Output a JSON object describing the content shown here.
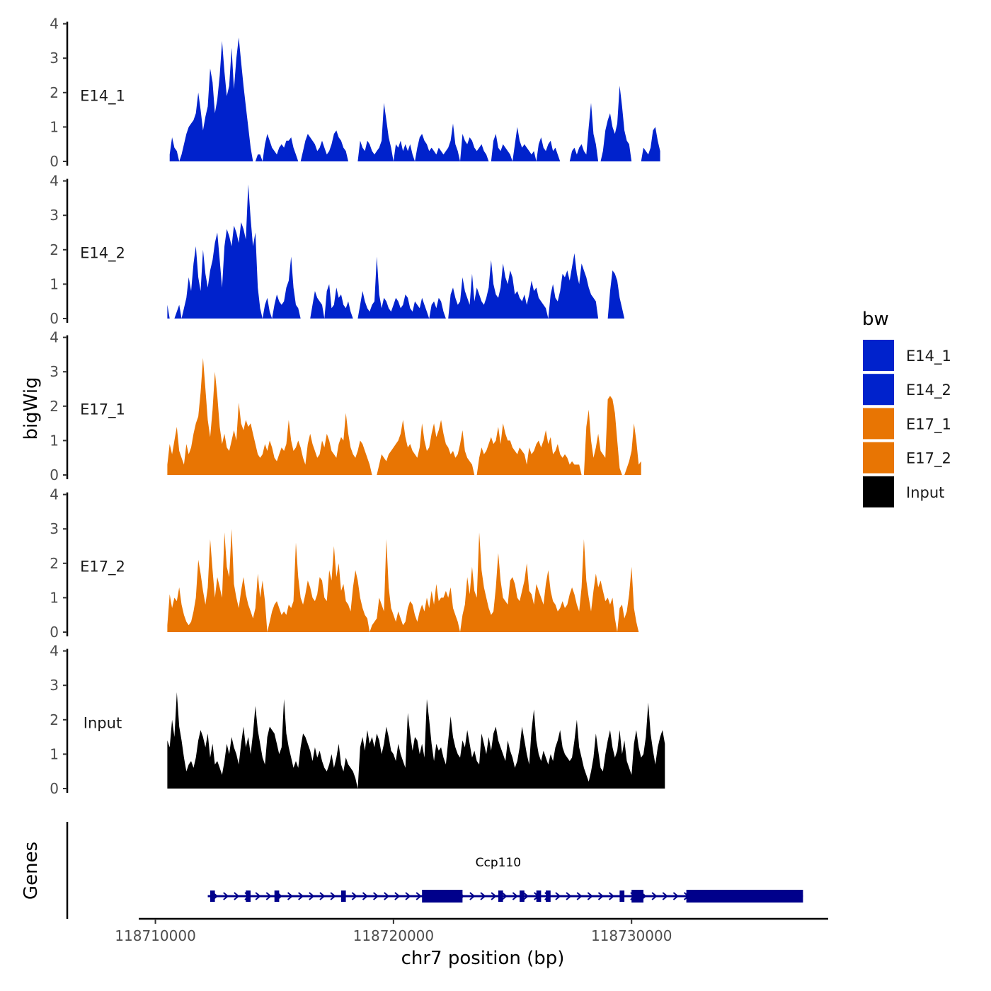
{
  "chart_data": {
    "type": "area",
    "title": "",
    "ylabel": "bigWig",
    "xlabel": "chr7 position (bp)",
    "xlim": [
      118709300,
      118738200
    ],
    "ylim": [
      0,
      4
    ],
    "yticks": [
      0,
      1,
      2,
      3,
      4
    ],
    "xticks": [
      118710000,
      118720000,
      118730000
    ],
    "xtick_labels": [
      "118710000",
      "118720000",
      "118730000"
    ],
    "legend": {
      "title": "bw",
      "position": "right",
      "entries": [
        {
          "name": "E14_1",
          "color": "#0022cc"
        },
        {
          "name": "E14_2",
          "color": "#0022cc"
        },
        {
          "name": "E17_1",
          "color": "#e87503"
        },
        {
          "name": "E17_2",
          "color": "#e87503"
        },
        {
          "name": "Input",
          "color": "#000000"
        }
      ]
    },
    "series": [
      {
        "name": "E14_1",
        "color": "#0022cc",
        "x_start": 118710600,
        "x_step": 100,
        "values": [
          0.2,
          0.7,
          0.4,
          0.3,
          0,
          0.2,
          0.5,
          0.8,
          1.0,
          1.1,
          1.2,
          1.4,
          2.0,
          1.5,
          0.9,
          1.3,
          1.6,
          2.7,
          2.3,
          1.4,
          1.8,
          2.5,
          3.5,
          2.6,
          1.9,
          2.2,
          3.3,
          2.1,
          3.0,
          3.6,
          2.9,
          2.2,
          1.6,
          1.0,
          0.4,
          0,
          0,
          0.2,
          0.2,
          0,
          0.5,
          0.8,
          0.6,
          0.4,
          0.3,
          0.2,
          0.4,
          0.5,
          0.4,
          0.6,
          0.6,
          0.7,
          0.4,
          0.2,
          0,
          0,
          0.3,
          0.6,
          0.8,
          0.7,
          0.6,
          0.5,
          0.3,
          0.4,
          0.6,
          0.4,
          0.2,
          0.3,
          0.5,
          0.8,
          0.9,
          0.7,
          0.6,
          0.4,
          0.3,
          0,
          0,
          0,
          0,
          0,
          0.6,
          0.4,
          0.3,
          0.6,
          0.5,
          0.3,
          0.2,
          0.3,
          0.4,
          0.6,
          1.7,
          1.2,
          0.7,
          0.4,
          0,
          0.5,
          0.4,
          0.6,
          0.3,
          0.5,
          0.3,
          0.5,
          0.2,
          0,
          0.4,
          0.7,
          0.8,
          0.6,
          0.5,
          0.3,
          0.4,
          0.3,
          0.2,
          0.4,
          0.3,
          0.2,
          0.3,
          0.4,
          0.6,
          1.1,
          0.5,
          0.3,
          0,
          0.8,
          0.6,
          0.5,
          0.7,
          0.6,
          0.4,
          0.3,
          0.4,
          0.5,
          0.3,
          0.2,
          0,
          0,
          0.6,
          0.8,
          0.4,
          0.3,
          0.5,
          0.4,
          0.3,
          0.2,
          0,
          0.5,
          1.0,
          0.6,
          0.4,
          0.5,
          0.4,
          0.3,
          0.2,
          0.3,
          0,
          0.5,
          0.7,
          0.4,
          0.3,
          0.5,
          0.6,
          0.3,
          0.4,
          0.2,
          0,
          0,
          0,
          0,
          0,
          0.3,
          0.4,
          0.2,
          0.4,
          0.5,
          0.3,
          0.2,
          1.0,
          1.7,
          0.8,
          0.5,
          0,
          0,
          0.3,
          0.9,
          1.2,
          1.4,
          1.0,
          0.8,
          1.1,
          2.2,
          1.6,
          0.9,
          0.6,
          0.5,
          0,
          0,
          0,
          0,
          0,
          0.4,
          0.3,
          0.2,
          0.4,
          0.9,
          1.0,
          0.6,
          0.3
        ]
      },
      {
        "name": "E14_2",
        "color": "#0022cc",
        "x_start": 118710500,
        "x_step": 100,
        "values": [
          0.4,
          0,
          0,
          0,
          0.2,
          0.4,
          0,
          0.3,
          0.6,
          1.2,
          0.8,
          1.6,
          2.1,
          1.2,
          0.8,
          2.0,
          1.3,
          0.9,
          1.4,
          1.7,
          2.2,
          2.5,
          1.7,
          0.9,
          2.1,
          2.6,
          2.4,
          2.1,
          2.7,
          2.5,
          2.2,
          2.8,
          2.6,
          2.3,
          3.9,
          2.9,
          2.1,
          2.5,
          0.9,
          0.3,
          0,
          0.4,
          0.6,
          0.2,
          0,
          0.4,
          0.7,
          0.5,
          0.4,
          0.5,
          0.9,
          1.1,
          1.8,
          0.9,
          0.4,
          0.3,
          0,
          0,
          0,
          0,
          0,
          0.4,
          0.8,
          0.6,
          0.5,
          0.4,
          0,
          0.8,
          1.0,
          0.3,
          0.4,
          0.9,
          0.6,
          0.7,
          0.4,
          0.3,
          0.5,
          0.2,
          0,
          0,
          0,
          0.4,
          0.8,
          0.5,
          0.3,
          0.2,
          0.4,
          0.5,
          1.8,
          0.7,
          0.3,
          0.6,
          0.5,
          0.3,
          0.2,
          0.4,
          0.6,
          0.5,
          0.3,
          0.4,
          0.7,
          0.6,
          0.3,
          0.2,
          0.5,
          0.4,
          0.3,
          0.6,
          0.4,
          0.2,
          0,
          0.4,
          0.5,
          0.3,
          0.6,
          0.5,
          0.2,
          0,
          0,
          0.7,
          0.9,
          0.6,
          0.4,
          0.5,
          1.2,
          0.8,
          0.6,
          0.4,
          1.3,
          0.5,
          0.9,
          0.7,
          0.5,
          0.4,
          0.6,
          0.9,
          1.7,
          1.0,
          0.7,
          0.6,
          0.9,
          1.6,
          1.2,
          1.0,
          1.4,
          1.2,
          0.7,
          0.8,
          0.6,
          0.5,
          0.7,
          0.4,
          0.7,
          1.1,
          0.8,
          0.9,
          0.6,
          0.5,
          0.4,
          0.3,
          0,
          0.7,
          1.0,
          0.6,
          0.5,
          0.8,
          1.3,
          1.2,
          1.4,
          1.1,
          1.5,
          1.9,
          1.3,
          1.0,
          1.6,
          1.4,
          1.2,
          0.9,
          0.7,
          0.6,
          0.5,
          0,
          0,
          0,
          0,
          0,
          0.8,
          1.4,
          1.3,
          1.1,
          0.6,
          0.3,
          0
        ]
      },
      {
        "name": "E17_1",
        "color": "#e87503",
        "x_start": 118710500,
        "x_step": 100,
        "values": [
          0.3,
          0.9,
          0.6,
          1.0,
          1.4,
          0.7,
          0.5,
          0.3,
          0.9,
          0.6,
          0.8,
          1.2,
          1.5,
          1.7,
          2.4,
          3.4,
          2.5,
          1.6,
          1.1,
          1.9,
          3.0,
          2.3,
          1.4,
          0.9,
          1.2,
          0.8,
          0.7,
          1.0,
          1.3,
          1.0,
          2.1,
          1.5,
          1.3,
          1.6,
          1.4,
          1.5,
          1.2,
          0.9,
          0.6,
          0.5,
          0.6,
          0.9,
          0.7,
          1.0,
          0.8,
          0.5,
          0.4,
          0.6,
          0.8,
          0.7,
          0.9,
          1.6,
          1.0,
          0.7,
          0.8,
          1.0,
          0.8,
          0.5,
          0.3,
          0.9,
          1.2,
          0.9,
          0.7,
          0.5,
          0.6,
          1.0,
          0.8,
          1.2,
          1.0,
          0.7,
          0.6,
          0.5,
          0.9,
          1.1,
          1.0,
          1.8,
          1.2,
          0.8,
          0.6,
          0.5,
          0.7,
          1.0,
          0.9,
          0.7,
          0.5,
          0.3,
          0,
          0,
          0,
          0.3,
          0.6,
          0.5,
          0.4,
          0.6,
          0.7,
          0.8,
          0.9,
          1.0,
          1.2,
          1.6,
          1.1,
          0.8,
          0.9,
          0.7,
          0.6,
          0.5,
          0.8,
          1.5,
          1.0,
          0.7,
          0.8,
          1.2,
          1.5,
          1.1,
          1.3,
          1.6,
          1.2,
          0.9,
          0.8,
          0.6,
          0.7,
          0.5,
          0.6,
          0.9,
          1.3,
          0.7,
          0.5,
          0.4,
          0.3,
          0,
          0,
          0.5,
          0.8,
          0.6,
          0.7,
          0.9,
          1.1,
          0.9,
          1.0,
          1.4,
          0.9,
          1.5,
          1.2,
          1.0,
          1.0,
          0.8,
          0.7,
          0.6,
          0.8,
          0.7,
          0.6,
          0.3,
          0.8,
          0.6,
          0.7,
          0.9,
          1.0,
          0.8,
          1.0,
          1.3,
          0.9,
          1.1,
          0.6,
          0.7,
          0.9,
          0.6,
          0.5,
          0.6,
          0.5,
          0.3,
          0.4,
          0.3,
          0.3,
          0.3,
          0,
          0,
          1.4,
          1.9,
          1.0,
          0.5,
          0.8,
          1.2,
          0.7,
          0.6,
          0.5,
          2.2,
          2.3,
          2.2,
          1.8,
          1.0,
          0.2,
          0,
          0,
          0.2,
          0.4,
          0.7,
          1.5,
          1.0,
          0.3,
          0.4
        ]
      },
      {
        "name": "E17_2",
        "color": "#e87503",
        "x_start": 118710500,
        "x_step": 100,
        "values": [
          0.2,
          1.1,
          0.7,
          1.0,
          0.9,
          1.3,
          0.8,
          0.5,
          0.3,
          0.2,
          0.3,
          0.6,
          1.0,
          2.1,
          1.7,
          1.2,
          0.8,
          1.3,
          2.7,
          1.8,
          1.0,
          1.6,
          1.3,
          1.0,
          2.9,
          1.9,
          1.6,
          3.0,
          1.4,
          1.0,
          0.7,
          1.2,
          1.6,
          1.1,
          0.8,
          0.6,
          0.4,
          0.7,
          1.7,
          1.0,
          1.5,
          0.9,
          0,
          0.3,
          0.6,
          0.8,
          0.9,
          0.7,
          0.5,
          0.6,
          0.5,
          0.8,
          0.7,
          0.9,
          2.6,
          1.6,
          1.0,
          0.8,
          1.1,
          1.5,
          1.3,
          1.0,
          0.9,
          1.1,
          1.6,
          1.5,
          1.0,
          0.9,
          1.8,
          1.5,
          2.5,
          1.6,
          2.0,
          1.2,
          1.4,
          0.9,
          0.8,
          0.6,
          1.3,
          1.8,
          1.5,
          1.0,
          0.7,
          0.5,
          0.4,
          0,
          0.2,
          0.3,
          0.4,
          1.0,
          0.8,
          0.6,
          2.7,
          1.3,
          0.7,
          0.5,
          0.3,
          0.6,
          0.4,
          0.2,
          0.3,
          0.7,
          0.9,
          0.8,
          0.5,
          0.3,
          0.6,
          0.8,
          0.6,
          1.0,
          0.7,
          1.2,
          0.8,
          1.4,
          0.9,
          1.0,
          1.0,
          1.2,
          1.0,
          1.3,
          0.7,
          0.5,
          0.3,
          0,
          0.5,
          0.8,
          1.6,
          1.1,
          1.9,
          1.2,
          1.0,
          2.9,
          1.8,
          1.3,
          1.0,
          0.7,
          0.5,
          0.6,
          1.3,
          2.3,
          1.5,
          1.0,
          0.9,
          0.8,
          1.5,
          1.6,
          1.4,
          1.0,
          0.9,
          1.2,
          1.5,
          2.0,
          1.2,
          1.1,
          0.8,
          1.4,
          1.2,
          1.0,
          0.8,
          1.4,
          1.8,
          1.2,
          0.9,
          0.8,
          0.6,
          0.7,
          0.9,
          0.7,
          0.8,
          1.1,
          1.3,
          1.1,
          0.8,
          0.6,
          1.3,
          2.7,
          1.5,
          1.0,
          0.6,
          1.2,
          1.7,
          1.3,
          1.5,
          1.2,
          0.9,
          1.0,
          0.8,
          1.0,
          0.4,
          0,
          0.7,
          0.8,
          0.4,
          0.6,
          1.1,
          1.9,
          0.7,
          0.3,
          0
        ]
      },
      {
        "name": "Input",
        "color": "#000000",
        "x_start": 118710500,
        "x_step": 100,
        "values": [
          1.4,
          1.2,
          2.0,
          1.5,
          2.8,
          1.8,
          1.4,
          0.9,
          0.5,
          0.7,
          0.8,
          0.6,
          0.9,
          1.4,
          1.7,
          1.5,
          1.2,
          1.6,
          0.9,
          1.3,
          0.7,
          0.8,
          0.6,
          0.4,
          0.8,
          1.3,
          1.0,
          1.5,
          1.2,
          1.0,
          0.7,
          1.3,
          1.8,
          1.2,
          1.5,
          1.0,
          1.6,
          2.4,
          1.7,
          1.3,
          0.9,
          0.7,
          1.5,
          1.8,
          1.7,
          1.6,
          1.3,
          1.0,
          1.2,
          2.6,
          1.6,
          1.2,
          0.9,
          0.6,
          0.8,
          0.6,
          1.2,
          1.6,
          1.5,
          1.3,
          1.1,
          0.8,
          1.2,
          0.9,
          1.1,
          0.8,
          0.6,
          0.5,
          0.7,
          1.0,
          0.6,
          0.9,
          1.3,
          0.7,
          0.5,
          0.9,
          0.7,
          0.6,
          0.5,
          0.3,
          0,
          1.2,
          1.5,
          1.1,
          1.7,
          1.3,
          1.5,
          1.2,
          1.6,
          1.4,
          1.0,
          1.3,
          1.8,
          1.5,
          1.1,
          1.0,
          0.8,
          1.3,
          1.0,
          0.8,
          0.6,
          2.2,
          1.6,
          1.1,
          1.5,
          1.4,
          1.0,
          1.3,
          0.9,
          2.6,
          2.0,
          1.3,
          0.8,
          1.3,
          1.1,
          1.2,
          0.9,
          0.7,
          1.4,
          2.1,
          1.5,
          1.2,
          1.0,
          0.9,
          1.4,
          1.2,
          1.7,
          1.3,
          0.9,
          1.1,
          0.8,
          0.7,
          1.6,
          1.3,
          1.0,
          1.5,
          1.1,
          1.6,
          1.8,
          1.4,
          1.2,
          1.0,
          0.8,
          1.4,
          1.1,
          0.9,
          0.6,
          0.8,
          1.2,
          1.8,
          1.4,
          1.0,
          0.7,
          1.7,
          2.3,
          1.4,
          1.0,
          0.8,
          1.1,
          0.9,
          0.7,
          1.0,
          0.8,
          1.2,
          1.4,
          1.7,
          1.2,
          1.0,
          0.9,
          0.8,
          0.9,
          1.4,
          2.0,
          1.2,
          0.9,
          0.6,
          0.4,
          0.2,
          0.5,
          0.9,
          1.6,
          1.1,
          0.6,
          0.5,
          1.0,
          1.4,
          1.7,
          1.2,
          0.9,
          1.1,
          1.7,
          1.0,
          1.4,
          0.8,
          0.6,
          0.4,
          1.3,
          1.7,
          1.2,
          0.9,
          1.0,
          1.5,
          2.5,
          1.6,
          1.1,
          0.7,
          1.2,
          1.5,
          1.7,
          1.3
        ]
      }
    ],
    "genes": {
      "ylabel": "Genes",
      "name": "Ccp110",
      "color": "#00008b",
      "start": 118712200,
      "end": 118737200,
      "strand": "+",
      "exons": [
        {
          "start": 118712300,
          "end": 118712500,
          "kind": "thin"
        },
        {
          "start": 118713800,
          "end": 118714000,
          "kind": "thin"
        },
        {
          "start": 118715000,
          "end": 118715200,
          "kind": "thin"
        },
        {
          "start": 118717800,
          "end": 118718000,
          "kind": "thin"
        },
        {
          "start": 118721200,
          "end": 118722900,
          "kind": "thick"
        },
        {
          "start": 118724400,
          "end": 118724600,
          "kind": "thin"
        },
        {
          "start": 118725300,
          "end": 118725500,
          "kind": "thin"
        },
        {
          "start": 118726000,
          "end": 118726200,
          "kind": "thin"
        },
        {
          "start": 118726400,
          "end": 118726600,
          "kind": "thin"
        },
        {
          "start": 118729500,
          "end": 118729700,
          "kind": "thin"
        },
        {
          "start": 118730000,
          "end": 118730500,
          "kind": "thick"
        },
        {
          "start": 118732300,
          "end": 118737200,
          "kind": "thick"
        }
      ]
    }
  }
}
